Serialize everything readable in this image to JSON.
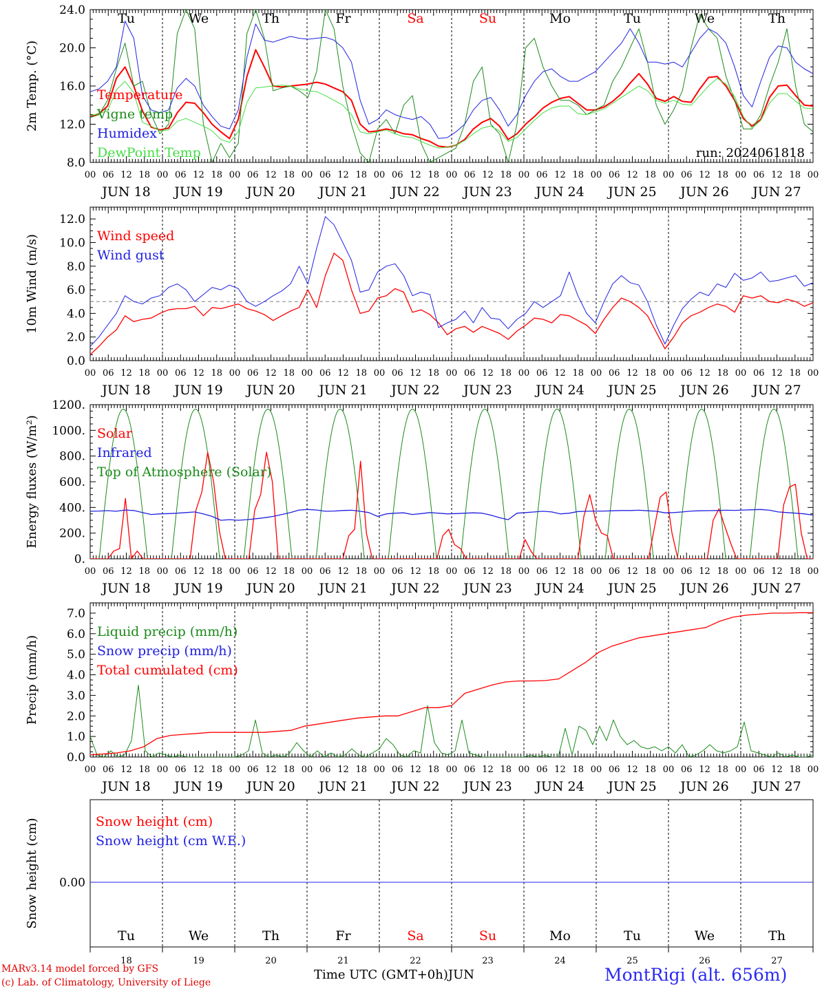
{
  "days": [
    {
      "abbr": "Tu",
      "weekend": false,
      "label": "JUN 18",
      "num": "18"
    },
    {
      "abbr": "We",
      "weekend": false,
      "label": "JUN 19",
      "num": "19"
    },
    {
      "abbr": "Th",
      "weekend": false,
      "label": "JUN 20",
      "num": "20"
    },
    {
      "abbr": "Fr",
      "weekend": false,
      "label": "JUN 21",
      "num": "21"
    },
    {
      "abbr": "Sa",
      "weekend": true,
      "label": "JUN 22",
      "num": "22"
    },
    {
      "abbr": "Su",
      "weekend": true,
      "label": "JUN 23",
      "num": "23"
    },
    {
      "abbr": "Mo",
      "weekend": false,
      "label": "JUN 24",
      "num": "24"
    },
    {
      "abbr": "Tu",
      "weekend": false,
      "label": "JUN 25",
      "num": "25"
    },
    {
      "abbr": "We",
      "weekend": false,
      "label": "JUN 26",
      "num": "26"
    },
    {
      "abbr": "Th",
      "weekend": false,
      "label": "JUN 27",
      "num": "27"
    }
  ],
  "hour_ticks": [
    "00",
    "06",
    "12",
    "18"
  ],
  "hour_end": "00",
  "footer": {
    "credit_line1": "MARv3.14 model forced by GFS",
    "credit_line2": "(c) Lab. of Climatology, University of Liege",
    "xlabel": "Time UTC (GMT+0h)",
    "month": "JUN",
    "station": "MontRigi (alt. 656m)"
  },
  "colors": {
    "weekend": "#ff0000",
    "grid": "#000000",
    "dashed_ref": "#999999"
  },
  "chart_data": [
    {
      "id": "temp",
      "type": "line",
      "ylabel": "2m Temp. (°C)",
      "ylim": [
        8,
        24
      ],
      "yticks": [
        "8.0",
        "12.0",
        "16.0",
        "20.0",
        "24.0"
      ],
      "annotation": "run: 2024061818",
      "series": [
        {
          "name": "Temperature",
          "color": "#ff0000",
          "width": 2,
          "values": [
            12.8,
            13.1,
            13.9,
            16.8,
            18.0,
            16.0,
            13.4,
            11.7,
            11.4,
            11.6,
            13.2,
            14.3,
            14.2,
            13.2,
            12.0,
            11.2,
            10.5,
            12.5,
            17.0,
            19.8,
            18.0,
            16.0,
            15.9,
            16.0,
            16.1,
            16.2,
            16.4,
            16.2,
            15.8,
            15.4,
            14.5,
            12.0,
            11.2,
            11.3,
            11.5,
            11.3,
            11.0,
            10.9,
            10.5,
            10.2,
            9.7,
            9.6,
            9.8,
            10.4,
            11.5,
            12.2,
            12.6,
            11.8,
            10.4,
            11.0,
            12.0,
            12.8,
            13.7,
            14.3,
            14.7,
            14.9,
            14.2,
            13.5,
            13.5,
            13.8,
            14.4,
            15.2,
            16.3,
            17.3,
            16.2,
            14.7,
            14.4,
            14.9,
            14.4,
            14.3,
            15.7,
            16.9,
            17.0,
            16.0,
            14.5,
            12.6,
            11.8,
            12.5,
            14.8,
            16.0,
            16.1,
            15.0,
            14.0,
            13.9
          ]
        },
        {
          "name": "Vigne temp",
          "color": "#1a8a1a",
          "width": 1,
          "values": [
            12.7,
            13.0,
            14.5,
            17.8,
            20.5,
            16.0,
            16.5,
            13.0,
            11.0,
            12.0,
            21.5,
            24.0,
            22.0,
            12.0,
            8.0,
            10.0,
            8.5,
            10.0,
            21.5,
            24.0,
            21.0,
            15.5,
            15.8,
            16.0,
            15.5,
            14.8,
            17.5,
            24.0,
            22.0,
            16.0,
            12.0,
            9.0,
            8.0,
            11.5,
            12.5,
            11.0,
            14.0,
            15.0,
            10.0,
            8.0,
            8.5,
            9.0,
            9.5,
            12.0,
            16.5,
            18.0,
            12.0,
            11.0,
            8.0,
            12.0,
            20.0,
            21.0,
            18.0,
            16.0,
            14.5,
            14.5,
            14.0,
            13.0,
            13.5,
            14.0,
            16.5,
            18.0,
            20.0,
            22.0,
            18.5,
            14.0,
            12.0,
            13.5,
            15.5,
            20.0,
            23.5,
            22.0,
            21.0,
            17.0,
            14.5,
            11.5,
            11.5,
            13.0,
            16.0,
            18.5,
            22.0,
            16.0,
            12.0,
            11.2
          ]
        },
        {
          "name": "Humidex",
          "color": "#2020e0",
          "width": 1,
          "values": [
            15.4,
            15.7,
            16.5,
            18.0,
            22.8,
            21.0,
            15.0,
            13.5,
            13.2,
            13.5,
            15.8,
            16.8,
            16.0,
            14.0,
            12.8,
            11.8,
            11.5,
            13.5,
            19.0,
            22.5,
            20.8,
            20.6,
            20.9,
            21.2,
            21.0,
            20.9,
            21.0,
            21.1,
            20.8,
            20.0,
            18.5,
            14.5,
            12.0,
            12.5,
            13.5,
            13.0,
            12.7,
            12.5,
            12.8,
            12.0,
            10.5,
            10.6,
            11.2,
            12.0,
            13.5,
            14.5,
            14.8,
            13.5,
            11.8,
            13.0,
            15.0,
            16.5,
            17.5,
            17.8,
            17.0,
            16.5,
            16.5,
            17.0,
            17.5,
            18.5,
            19.5,
            20.5,
            22.0,
            20.5,
            18.5,
            18.5,
            18.3,
            18.5,
            18.0,
            19.5,
            21.0,
            22.0,
            21.5,
            20.5,
            18.0,
            15.0,
            13.8,
            16.5,
            19.0,
            20.2,
            20.0,
            18.5,
            17.8,
            17.3
          ]
        },
        {
          "name": "DewPoint Temp",
          "color": "#44dd44",
          "width": 1,
          "values": [
            12.9,
            13.1,
            13.4,
            15.6,
            16.5,
            15.3,
            12.2,
            11.8,
            11.3,
            11.4,
            12.3,
            12.6,
            12.2,
            11.8,
            11.3,
            10.4,
            10.1,
            11.2,
            14.3,
            15.8,
            15.9,
            16.0,
            16.1,
            16.0,
            15.7,
            15.5,
            15.4,
            15.0,
            14.5,
            14.0,
            13.0,
            11.2,
            11.0,
            11.2,
            11.4,
            11.0,
            10.7,
            10.6,
            10.2,
            9.8,
            9.5,
            9.6,
            9.8,
            10.3,
            11.0,
            11.6,
            11.8,
            11.3,
            10.2,
            10.6,
            11.5,
            12.4,
            13.2,
            13.7,
            13.9,
            13.9,
            13.1,
            13.0,
            13.3,
            13.6,
            14.2,
            14.8,
            15.4,
            16.0,
            15.5,
            14.5,
            14.2,
            14.5,
            14.1,
            14.0,
            15.0,
            16.0,
            16.8,
            16.2,
            14.9,
            12.8,
            11.6,
            12.4,
            14.2,
            15.2,
            15.2,
            14.4,
            13.7,
            13.6
          ]
        }
      ]
    },
    {
      "id": "wind",
      "type": "line",
      "ylabel": "10m Wind (m/s)",
      "ylim": [
        0,
        13
      ],
      "yticks": [
        "0.0",
        "2.0",
        "4.0",
        "6.0",
        "8.0",
        "10.0",
        "12.0"
      ],
      "reference_line": 5,
      "series": [
        {
          "name": "Wind speed",
          "color": "#ff0000",
          "width": 1.3,
          "values": [
            0.5,
            1.2,
            2.0,
            2.6,
            3.8,
            3.3,
            3.5,
            3.6,
            4.0,
            4.3,
            4.4,
            4.4,
            4.6,
            3.8,
            4.5,
            4.4,
            4.6,
            4.8,
            4.4,
            4.2,
            3.9,
            3.4,
            3.8,
            4.2,
            4.5,
            6.0,
            4.5,
            7.2,
            9.1,
            8.5,
            6.0,
            4.0,
            4.2,
            5.3,
            5.5,
            6.1,
            5.8,
            4.1,
            4.3,
            3.9,
            3.2,
            2.2,
            2.7,
            2.9,
            2.4,
            2.9,
            2.6,
            2.3,
            1.8,
            2.5,
            3.0,
            3.6,
            3.5,
            3.2,
            3.9,
            3.8,
            3.4,
            3.0,
            2.3,
            3.5,
            4.5,
            5.3,
            5.0,
            4.5,
            3.8,
            2.4,
            1.0,
            2.0,
            3.2,
            3.8,
            4.1,
            4.5,
            4.8,
            4.6,
            4.1,
            5.5,
            5.3,
            5.5,
            5.0,
            4.9,
            5.2,
            5.0,
            4.6,
            4.9
          ]
        },
        {
          "name": "Wind gust",
          "color": "#2020e0",
          "width": 1,
          "values": [
            1.2,
            2.0,
            3.0,
            4.0,
            5.5,
            5.0,
            4.8,
            5.3,
            5.5,
            6.2,
            6.5,
            6.0,
            5.0,
            5.6,
            6.2,
            6.0,
            6.4,
            6.1,
            5.0,
            4.6,
            5.0,
            5.5,
            5.9,
            6.5,
            8.0,
            6.5,
            9.5,
            12.2,
            11.5,
            10.0,
            8.5,
            5.8,
            6.0,
            7.5,
            8.0,
            8.2,
            7.2,
            5.5,
            5.8,
            5.6,
            2.8,
            3.2,
            3.5,
            4.2,
            3.2,
            4.5,
            3.6,
            3.5,
            2.7,
            3.5,
            4.0,
            5.0,
            4.5,
            5.0,
            5.5,
            7.5,
            5.5,
            4.0,
            3.2,
            5.0,
            6.5,
            7.2,
            6.6,
            6.4,
            5.0,
            3.0,
            1.4,
            3.0,
            4.4,
            5.2,
            5.8,
            5.5,
            6.5,
            6.2,
            7.4,
            6.8,
            7.0,
            7.5,
            6.7,
            6.8,
            7.0,
            7.2,
            6.3,
            6.6
          ]
        }
      ]
    },
    {
      "id": "energy",
      "type": "line",
      "ylabel": "Energy fluxes (W/m²)",
      "ylim": [
        0,
        1200
      ],
      "yticks": [
        "0.",
        "200.",
        "400.",
        "600.",
        "800.",
        "1000.",
        "1200."
      ],
      "toa_daylight_hours": [
        3,
        19
      ],
      "toa_peak": 1165,
      "series": [
        {
          "name": "Solar",
          "color": "#ff0000",
          "width": 1.3,
          "values": [
            0,
            0,
            0,
            0,
            60,
            80,
            470,
            0,
            60,
            0,
            0,
            0,
            0,
            0,
            0,
            0,
            0,
            0,
            380,
            520,
            830,
            600,
            210,
            0,
            0,
            0,
            0,
            0,
            380,
            500,
            830,
            600,
            0,
            0,
            0,
            0,
            0,
            0,
            0,
            0,
            0,
            0,
            0,
            0,
            180,
            230,
            760,
            200,
            0,
            0,
            0,
            0,
            0,
            0,
            0,
            0,
            0,
            0,
            0,
            0,
            180,
            230,
            110,
            80,
            0,
            0,
            0,
            0,
            0,
            0,
            0,
            0,
            0,
            0,
            150,
            60,
            0,
            0,
            0,
            0,
            0,
            0,
            0,
            0,
            330,
            500,
            300,
            200,
            180,
            0,
            0,
            0,
            0,
            0,
            0,
            0,
            240,
            480,
            520,
            200,
            0,
            0,
            0,
            0,
            0,
            0,
            300,
            390,
            250,
            120,
            0,
            0,
            0,
            0,
            0,
            0,
            0,
            0,
            420,
            560,
            580,
            200,
            0,
            0
          ]
        },
        {
          "name": "Infrared",
          "color": "#2020e0",
          "width": 1.3,
          "values": [
            370,
            372,
            375,
            370,
            380,
            376,
            360,
            345,
            350,
            352,
            355,
            360,
            365,
            350,
            330,
            300,
            305,
            300,
            305,
            312,
            320,
            330,
            345,
            360,
            380,
            384,
            380,
            370,
            372,
            376,
            378,
            370,
            360,
            330,
            350,
            355,
            358,
            345,
            352,
            360,
            355,
            350,
            352,
            355,
            358,
            355,
            340,
            320,
            305,
            355,
            360,
            365,
            370,
            365,
            350,
            355,
            368,
            370,
            372,
            372,
            374,
            376,
            376,
            378,
            374,
            370,
            358,
            360,
            365,
            372,
            374,
            375,
            376,
            378,
            377,
            380,
            382,
            384,
            378,
            365,
            360,
            355,
            350,
            340
          ]
        },
        {
          "name": "Top of Atmosphere (Solar)",
          "color": "#1a8a1a",
          "width": 1,
          "values": []
        }
      ]
    },
    {
      "id": "precip",
      "type": "line",
      "ylabel": "Precip (mm/h)",
      "ylim": [
        0,
        7.5
      ],
      "yticks": [
        "0.0",
        "1.0",
        "2.0",
        "3.0",
        "4.0",
        "5.0",
        "6.0",
        "7.0"
      ],
      "series": [
        {
          "name": "Liquid precip (mm/h)",
          "color": "#1a8a1a",
          "width": 1,
          "values": [
            1.0,
            0.1,
            0.0,
            0.3,
            0.0,
            0.1,
            0.8,
            3.5,
            0.3,
            0.0,
            0.2,
            0.1,
            0.0,
            0.1,
            0.0,
            0.0,
            0.0,
            0.0,
            0.0,
            0.0,
            0.0,
            0.0,
            0.1,
            0.3,
            1.8,
            0.2,
            0.0,
            0.1,
            0.0,
            0.2,
            0.7,
            0.3,
            0.0,
            0.3,
            0.0,
            0.2,
            0.0,
            0.1,
            0.4,
            0.1,
            0.0,
            0.2,
            0.4,
            0.9,
            0.6,
            0.1,
            0.0,
            0.3,
            0.2,
            2.5,
            0.7,
            0.2,
            0.1,
            0.3,
            1.8,
            0.2,
            0.1,
            0.0,
            0.0,
            0.0,
            0.0,
            0.0,
            0.0,
            0.0,
            0.1,
            0.0,
            0.1,
            0.0,
            0.0,
            1.4,
            0.1,
            1.5,
            1.3,
            0.6,
            1.5,
            0.8,
            1.8,
            1.0,
            0.6,
            0.8,
            0.5,
            0.4,
            0.5,
            0.3,
            0.5,
            0.2,
            0.6,
            0.0,
            0.1,
            0.3,
            0.6,
            0.3,
            0.2,
            0.3,
            0.5,
            1.7,
            0.3,
            0.2,
            0.1,
            0.0,
            0.2,
            0.0,
            0.1,
            0.0,
            0.0,
            0.1
          ]
        },
        {
          "name": "Snow precip (mm/h)",
          "color": "#2020e0",
          "width": 1,
          "values": []
        },
        {
          "name": "Total cumulated (cm)",
          "color": "#ff0000",
          "width": 1.3,
          "values": [
            0.1,
            0.15,
            0.2,
            0.3,
            0.5,
            0.9,
            1.05,
            1.1,
            1.15,
            1.2,
            1.2,
            1.2,
            1.2,
            1.2,
            1.25,
            1.3,
            1.5,
            1.6,
            1.7,
            1.8,
            1.9,
            1.95,
            2.0,
            2.0,
            2.2,
            2.4,
            2.4,
            2.5,
            3.1,
            3.3,
            3.5,
            3.65,
            3.7,
            3.7,
            3.72,
            3.8,
            4.2,
            4.6,
            5.1,
            5.4,
            5.6,
            5.8,
            5.9,
            6.0,
            6.1,
            6.2,
            6.3,
            6.6,
            6.8,
            6.9,
            6.95,
            7.0,
            7.0,
            7.02,
            7.02
          ]
        }
      ]
    },
    {
      "id": "snow",
      "type": "line",
      "ylabel": "Snow height (cm)",
      "yticks": [
        "0.00"
      ],
      "series": [
        {
          "name": "Snow height (cm)",
          "color": "#ff0000",
          "width": 1,
          "values": [
            0,
            0
          ]
        },
        {
          "name": "Snow height (cm W.E.)",
          "color": "#2020e0",
          "width": 1,
          "values": [
            0,
            0
          ]
        }
      ]
    }
  ]
}
